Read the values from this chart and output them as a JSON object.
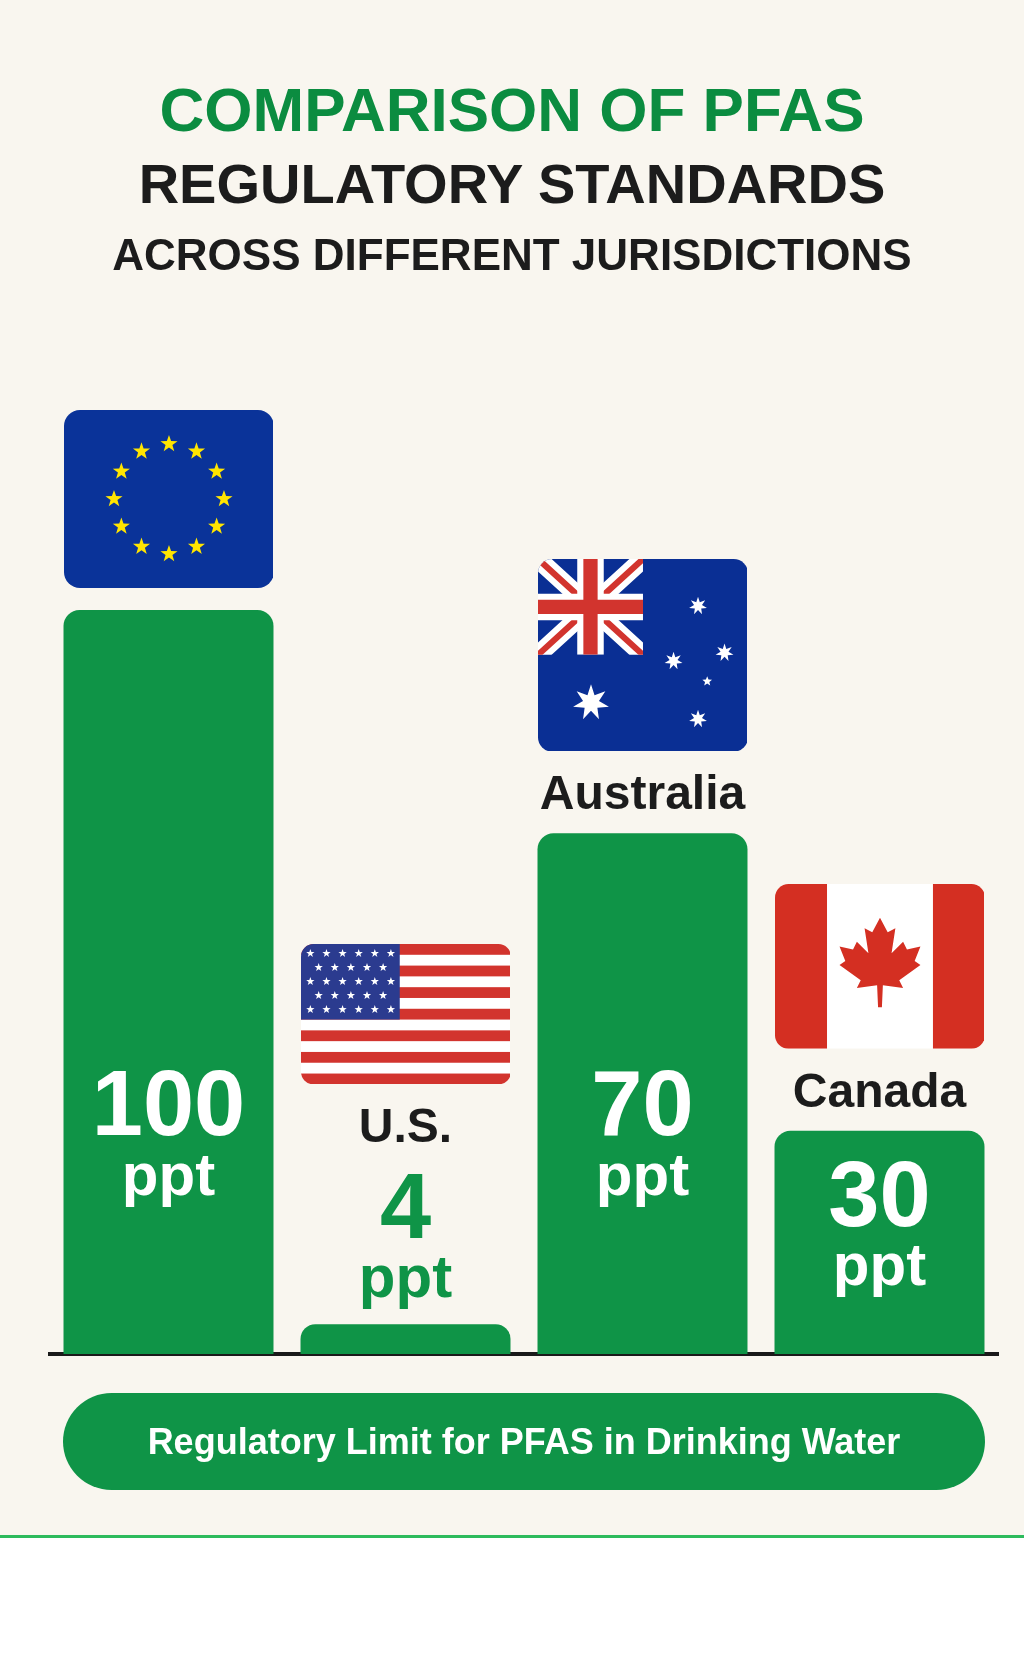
{
  "chart_data": {
    "type": "bar",
    "title": "COMPARISON OF PFAS\nREGULATORY STANDARDS",
    "subtitle": "ACROSS DIFFERENT JURISDICTIONS",
    "xlabel": "Regulatory Limit for PFAS in Drinking Water",
    "categories": [
      null,
      "U.S.",
      "Australia",
      "Canada"
    ],
    "values": [
      100,
      4,
      70,
      30
    ],
    "value_labels": [
      "100 ppt",
      "4 ppt",
      "70 ppt",
      "30 ppt"
    ],
    "color": "#0f9447",
    "grid": false,
    "legend": false
  }
}
